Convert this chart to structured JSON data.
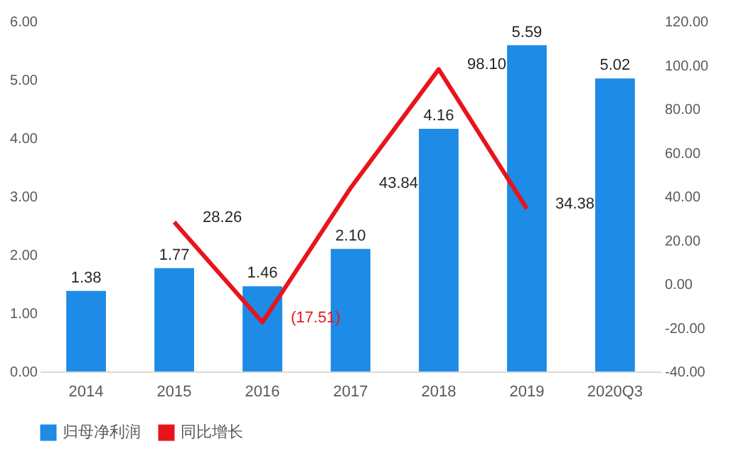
{
  "chart_data": {
    "type": "bar",
    "categories": [
      "2014",
      "2015",
      "2016",
      "2017",
      "2018",
      "2019",
      "2020Q3"
    ],
    "series": [
      {
        "name": "归母净利润",
        "color": "#1e8be6",
        "values": [
          1.38,
          1.77,
          1.46,
          2.1,
          4.16,
          5.59,
          5.02
        ],
        "value_labels": [
          "1.38",
          "1.77",
          "1.46",
          "2.10",
          "4.16",
          "5.59",
          "5.02"
        ]
      },
      {
        "name": "同比增长",
        "type": "line",
        "axis": "y2",
        "color": "#e8141c",
        "values": [
          null,
          28.26,
          -17.51,
          43.84,
          98.1,
          34.38,
          null
        ],
        "value_labels": [
          null,
          "28.26",
          "(17.51)",
          "43.84",
          "98.10",
          "34.38",
          null
        ]
      }
    ],
    "ylim": [
      0,
      6
    ],
    "yticks": [
      {
        "value": 0,
        "label": "0.00"
      },
      {
        "value": 1,
        "label": "1.00"
      },
      {
        "value": 2,
        "label": "2.00"
      },
      {
        "value": 3,
        "label": "3.00"
      },
      {
        "value": 4,
        "label": "4.00"
      },
      {
        "value": 5,
        "label": "5.00"
      },
      {
        "value": 6,
        "label": "6.00"
      }
    ],
    "y2lim": [
      -40,
      120
    ],
    "y2ticks": [
      {
        "value": -40,
        "label": "-40.00"
      },
      {
        "value": -20,
        "label": "-20.00"
      },
      {
        "value": 0,
        "label": "0.00"
      },
      {
        "value": 20,
        "label": "20.00"
      },
      {
        "value": 40,
        "label": "40.00"
      },
      {
        "value": 60,
        "label": "60.00"
      },
      {
        "value": 80,
        "label": "80.00"
      },
      {
        "value": 100,
        "label": "100.00"
      },
      {
        "value": 120,
        "label": "120.00"
      }
    ],
    "grid": false,
    "legend": "bottom"
  }
}
